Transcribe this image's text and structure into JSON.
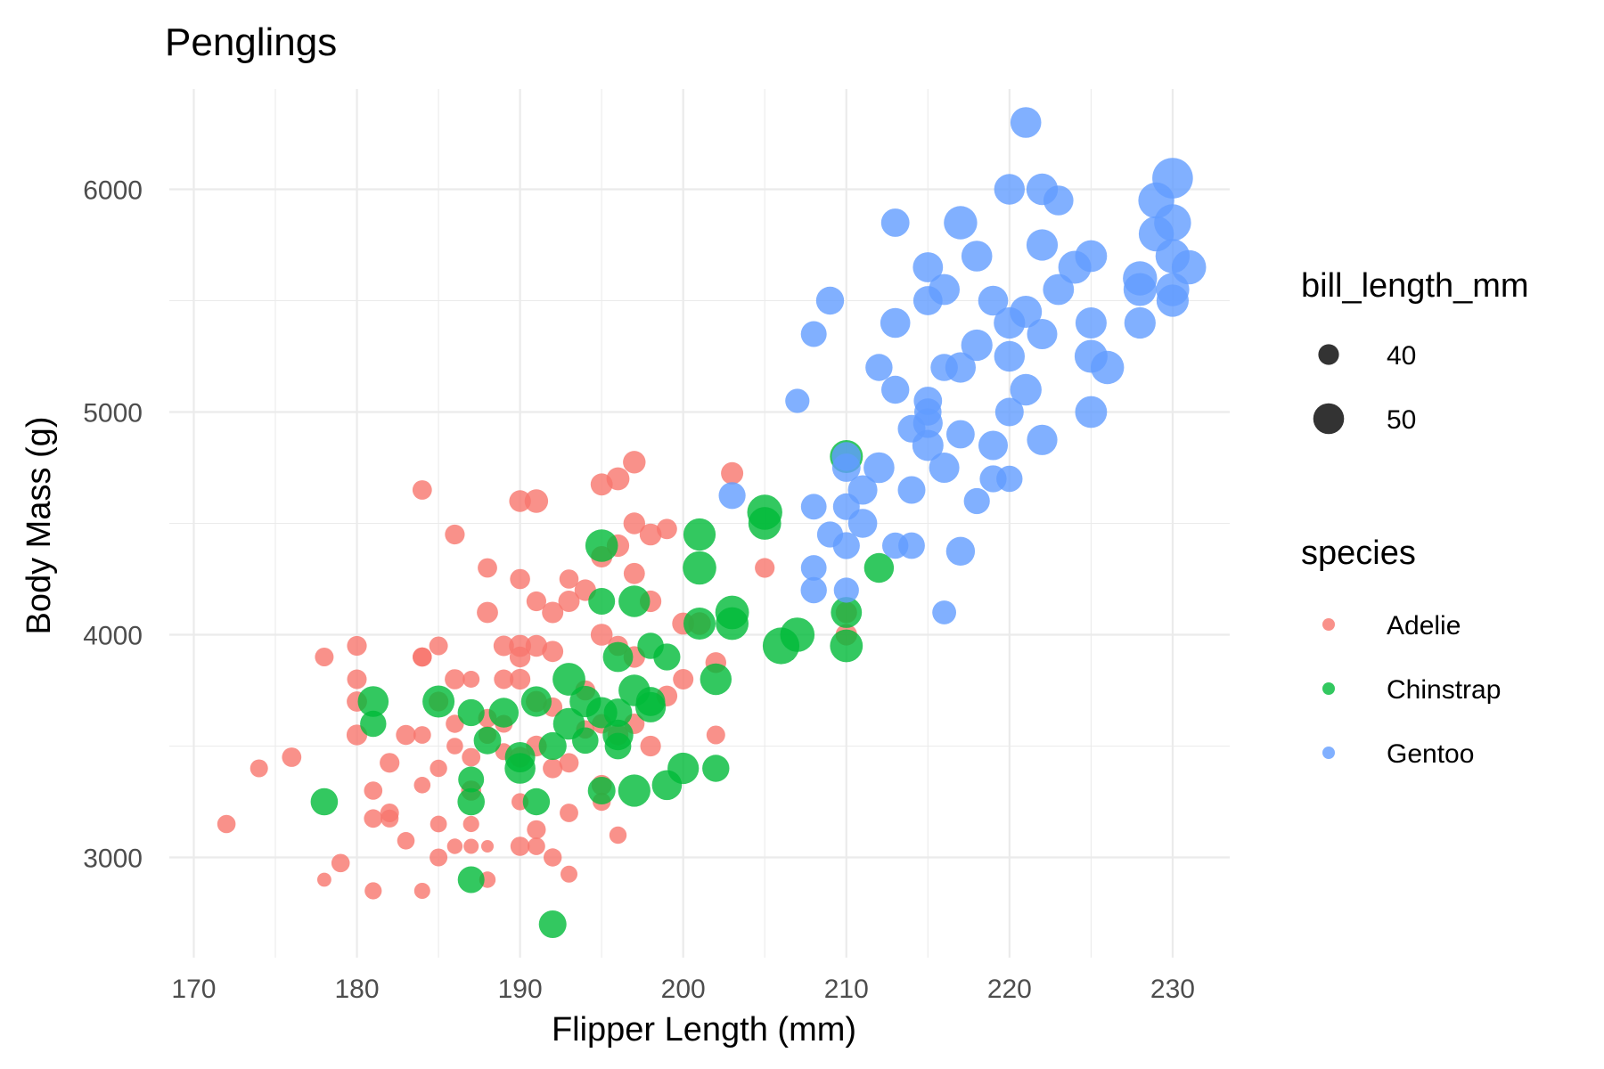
{
  "chart_data": {
    "type": "scatter",
    "title": "Penglings",
    "xlabel": "Flipper Length (mm)",
    "ylabel": "Body Mass (g)",
    "xlim": [
      168.5,
      233.5
    ],
    "ylim": [
      2550,
      6450
    ],
    "x_ticks": [
      170,
      180,
      190,
      200,
      210,
      220,
      230
    ],
    "y_ticks": [
      3000,
      4000,
      5000,
      6000
    ],
    "grid": true,
    "legend_position": "right",
    "size_legend": {
      "title": "bill_length_mm",
      "entries": [
        {
          "label": "40",
          "value": 40
        },
        {
          "label": "50",
          "value": 50
        }
      ],
      "range": [
        32,
        60
      ]
    },
    "color_legend": {
      "title": "species",
      "entries": [
        {
          "label": "Adelie",
          "color": "#F8766D"
        },
        {
          "label": "Chinstrap",
          "color": "#00BA38"
        },
        {
          "label": "Gentoo",
          "color": "#619CFF"
        }
      ]
    },
    "series": [
      {
        "name": "Adelie",
        "color": "#F8766D",
        "points": [
          [
            172,
            3150,
            37.8
          ],
          [
            174,
            3400,
            37.2
          ],
          [
            176,
            3450,
            38.8
          ],
          [
            178,
            2900,
            33.5
          ],
          [
            178,
            3900,
            38.1
          ],
          [
            179,
            2975,
            37.7
          ],
          [
            180,
            3950,
            39.2
          ],
          [
            180,
            3800,
            39.0
          ],
          [
            180,
            3550,
            40.0
          ],
          [
            180,
            3700,
            39.7
          ],
          [
            181,
            3300,
            37.8
          ],
          [
            181,
            3175,
            38.0
          ],
          [
            181,
            2850,
            36.5
          ],
          [
            182,
            3200,
            38.2
          ],
          [
            182,
            3425,
            39.1
          ],
          [
            182,
            3175,
            37.5
          ],
          [
            183,
            3550,
            39.3
          ],
          [
            183,
            3075,
            36.9
          ],
          [
            184,
            3900,
            38.6
          ],
          [
            184,
            3325,
            36.0
          ],
          [
            184,
            4650,
            38.8
          ],
          [
            184,
            3550,
            37.0
          ],
          [
            184,
            2850,
            35.5
          ],
          [
            184,
            3900,
            38.5
          ],
          [
            185,
            3400,
            36.7
          ],
          [
            185,
            3950,
            38.2
          ],
          [
            185,
            3700,
            39.2
          ],
          [
            185,
            3150,
            36.2
          ],
          [
            185,
            3000,
            37.3
          ],
          [
            186,
            3800,
            39.5
          ],
          [
            186,
            4450,
            39.2
          ],
          [
            186,
            3050,
            35.0
          ],
          [
            186,
            3500,
            36.0
          ],
          [
            186,
            3600,
            37.6
          ],
          [
            187,
            3450,
            37.9
          ],
          [
            187,
            3800,
            36.4
          ],
          [
            187,
            3150,
            35.7
          ],
          [
            187,
            3300,
            39.5
          ],
          [
            187,
            3050,
            34.6
          ],
          [
            188,
            2900,
            35.9
          ],
          [
            188,
            4300,
            38.8
          ],
          [
            188,
            4100,
            40.6
          ],
          [
            188,
            3550,
            37.3
          ],
          [
            188,
            3625,
            38.1
          ],
          [
            188,
            3050,
            30.0
          ],
          [
            189,
            3800,
            39.0
          ],
          [
            189,
            3950,
            39.8
          ],
          [
            189,
            3475,
            36.4
          ],
          [
            189,
            3600,
            37.2
          ],
          [
            190,
            3900,
            40.2
          ],
          [
            190,
            4600,
            41.1
          ],
          [
            190,
            3250,
            36.6
          ],
          [
            190,
            3050,
            38.7
          ],
          [
            190,
            3800,
            40.1
          ],
          [
            190,
            4250,
            39.6
          ],
          [
            190,
            3450,
            40.3
          ],
          [
            190,
            3950,
            41.4
          ],
          [
            191,
            4600,
            42.8
          ],
          [
            191,
            3950,
            41.1
          ],
          [
            191,
            3050,
            37.0
          ],
          [
            191,
            3700,
            40.5
          ],
          [
            191,
            3125,
            38.3
          ],
          [
            191,
            4150,
            39.1
          ],
          [
            191,
            3500,
            40.2
          ],
          [
            192,
            4100,
            40.8
          ],
          [
            192,
            3000,
            37.6
          ],
          [
            192,
            3675,
            38.9
          ],
          [
            192,
            3400,
            39.2
          ],
          [
            192,
            3925,
            40.6
          ],
          [
            193,
            4250,
            38.6
          ],
          [
            193,
            2925,
            36.4
          ],
          [
            193,
            3200,
            38.0
          ],
          [
            193,
            3425,
            38.9
          ],
          [
            193,
            4150,
            40.7
          ],
          [
            194,
            4200,
            40.9
          ],
          [
            194,
            3575,
            37.8
          ],
          [
            194,
            3750,
            39.5
          ],
          [
            195,
            4675,
            41.5
          ],
          [
            195,
            4000,
            41.3
          ],
          [
            195,
            3325,
            39.7
          ],
          [
            195,
            3250,
            37.6
          ],
          [
            195,
            3600,
            39.0
          ],
          [
            195,
            4350,
            40.8
          ],
          [
            196,
            4700,
            42.3
          ],
          [
            196,
            4400,
            41.8
          ],
          [
            196,
            3550,
            40.2
          ],
          [
            196,
            3950,
            39.6
          ],
          [
            196,
            3100,
            36.7
          ],
          [
            197,
            4775,
            42.0
          ],
          [
            197,
            4500,
            41.1
          ],
          [
            197,
            4275,
            40.6
          ],
          [
            197,
            3900,
            40.9
          ],
          [
            197,
            3600,
            39.9
          ],
          [
            198,
            4450,
            41.3
          ],
          [
            198,
            3500,
            40.1
          ],
          [
            198,
            4150,
            41.0
          ],
          [
            199,
            4475,
            39.7
          ],
          [
            199,
            3725,
            40.3
          ],
          [
            200,
            4050,
            41.4
          ],
          [
            200,
            3800,
            39.8
          ],
          [
            201,
            4050,
            42.0
          ],
          [
            202,
            3875,
            40.2
          ],
          [
            202,
            3550,
            38.1
          ],
          [
            203,
            4725,
            41.6
          ],
          [
            205,
            4300,
            39.2
          ],
          [
            210,
            4000,
            41.0
          ],
          [
            210,
            4100,
            40.7
          ]
        ]
      },
      {
        "name": "Chinstrap",
        "color": "#00BA38",
        "points": [
          [
            178,
            3250,
            46.5
          ],
          [
            181,
            3700,
            50.0
          ],
          [
            181,
            3600,
            45.4
          ],
          [
            185,
            3700,
            51.3
          ],
          [
            187,
            3650,
            46.1
          ],
          [
            187,
            3350,
            45.2
          ],
          [
            187,
            3250,
            46.6
          ],
          [
            187,
            2900,
            46.0
          ],
          [
            188,
            3525,
            46.7
          ],
          [
            189,
            3650,
            49.0
          ],
          [
            190,
            3400,
            50.0
          ],
          [
            190,
            3450,
            49.5
          ],
          [
            191,
            3250,
            46.4
          ],
          [
            191,
            3700,
            49.6
          ],
          [
            192,
            2700,
            46.9
          ],
          [
            192,
            3500,
            47.0
          ],
          [
            193,
            3800,
            52.0
          ],
          [
            193,
            3600,
            50.9
          ],
          [
            194,
            3525,
            45.7
          ],
          [
            194,
            3700,
            50.5
          ],
          [
            195,
            4400,
            51.7
          ],
          [
            195,
            4150,
            46.0
          ],
          [
            195,
            3300,
            46.8
          ],
          [
            195,
            3650,
            50.3
          ],
          [
            196,
            3550,
            49.8
          ],
          [
            196,
            3900,
            49.3
          ],
          [
            196,
            3650,
            47.5
          ],
          [
            196,
            3500,
            45.9
          ],
          [
            197,
            3300,
            51.5
          ],
          [
            197,
            4150,
            50.7
          ],
          [
            197,
            3750,
            50.8
          ],
          [
            198,
            3675,
            49.7
          ],
          [
            198,
            3950,
            45.6
          ],
          [
            198,
            3700,
            48.5
          ],
          [
            199,
            3325,
            49.2
          ],
          [
            199,
            3900,
            46.2
          ],
          [
            200,
            3400,
            50.5
          ],
          [
            201,
            4450,
            51.4
          ],
          [
            201,
            4300,
            52.7
          ],
          [
            201,
            4050,
            51.3
          ],
          [
            202,
            3800,
            50.8
          ],
          [
            202,
            3400,
            46.4
          ],
          [
            203,
            4100,
            52.8
          ],
          [
            203,
            4050,
            51.9
          ],
          [
            205,
            4550,
            54.2
          ],
          [
            205,
            4500,
            52.0
          ],
          [
            206,
            3950,
            55.8
          ],
          [
            207,
            4000,
            53.5
          ],
          [
            210,
            4800,
            52.2
          ],
          [
            210,
            4100,
            50.2
          ],
          [
            210,
            3950,
            51.9
          ],
          [
            212,
            4300,
            49.0
          ]
        ]
      },
      {
        "name": "Gentoo",
        "color": "#619CFF",
        "points": [
          [
            203,
            4625,
            46.1
          ],
          [
            207,
            5050,
            43.5
          ],
          [
            208,
            5350,
            45.1
          ],
          [
            208,
            4575,
            44.9
          ],
          [
            208,
            4300,
            45.0
          ],
          [
            208,
            4200,
            45.5
          ],
          [
            209,
            5500,
            47.2
          ],
          [
            209,
            4450,
            45.3
          ],
          [
            210,
            4750,
            47.5
          ],
          [
            210,
            4800,
            48.2
          ],
          [
            210,
            4575,
            46.0
          ],
          [
            210,
            4400,
            46.2
          ],
          [
            210,
            4200,
            44.5
          ],
          [
            211,
            4650,
            48.7
          ],
          [
            211,
            4500,
            48.2
          ],
          [
            212,
            5200,
            46.4
          ],
          [
            212,
            4750,
            50.0
          ],
          [
            213,
            5850,
            47.5
          ],
          [
            213,
            5400,
            49.1
          ],
          [
            213,
            5100,
            47.3
          ],
          [
            213,
            4400,
            45.4
          ],
          [
            214,
            4925,
            46.8
          ],
          [
            214,
            4650,
            46.9
          ],
          [
            214,
            4400,
            45.8
          ],
          [
            215,
            5650,
            49.3
          ],
          [
            215,
            5500,
            48.4
          ],
          [
            215,
            5050,
            47.6
          ],
          [
            215,
            5000,
            46.5
          ],
          [
            215,
            4950,
            48.8
          ],
          [
            215,
            4850,
            50.4
          ],
          [
            216,
            5550,
            50.2
          ],
          [
            216,
            5200,
            46.5
          ],
          [
            216,
            4750,
            49.5
          ],
          [
            216,
            4100,
            43.2
          ],
          [
            217,
            5850,
            52.5
          ],
          [
            217,
            5200,
            49.6
          ],
          [
            217,
            4900,
            47.5
          ],
          [
            217,
            4375,
            48.1
          ],
          [
            218,
            5700,
            50.0
          ],
          [
            218,
            5300,
            50.5
          ],
          [
            218,
            4600,
            45.3
          ],
          [
            219,
            5500,
            49.2
          ],
          [
            219,
            4850,
            48.7
          ],
          [
            219,
            4700,
            46.2
          ],
          [
            220,
            6000,
            49.9
          ],
          [
            220,
            5400,
            50.5
          ],
          [
            220,
            5250,
            49.8
          ],
          [
            220,
            5000,
            47.8
          ],
          [
            220,
            4700,
            45.5
          ],
          [
            221,
            6300,
            50.0
          ],
          [
            221,
            5450,
            51.3
          ],
          [
            221,
            5100,
            50.8
          ],
          [
            222,
            6000,
            50.8
          ],
          [
            222,
            5750,
            50.6
          ],
          [
            222,
            5350,
            49.5
          ],
          [
            222,
            4875,
            49.6
          ],
          [
            223,
            5950,
            49.1
          ],
          [
            223,
            5550,
            50.2
          ],
          [
            224,
            5650,
            52.1
          ],
          [
            225,
            5700,
            51.1
          ],
          [
            225,
            5400,
            50.4
          ],
          [
            225,
            5250,
            52.2
          ],
          [
            225,
            5000,
            51.0
          ],
          [
            226,
            5200,
            52.5
          ],
          [
            228,
            5600,
            53.4
          ],
          [
            228,
            5550,
            52.1
          ],
          [
            228,
            5400,
            50.5
          ],
          [
            229,
            5950,
            55.1
          ],
          [
            229,
            5800,
            54.3
          ],
          [
            230,
            6050,
            59.6
          ],
          [
            230,
            5850,
            55.9
          ],
          [
            230,
            5700,
            53.3
          ],
          [
            230,
            5550,
            52.4
          ],
          [
            230,
            5500,
            51.5
          ],
          [
            231,
            5650,
            53.5
          ]
        ]
      }
    ]
  }
}
